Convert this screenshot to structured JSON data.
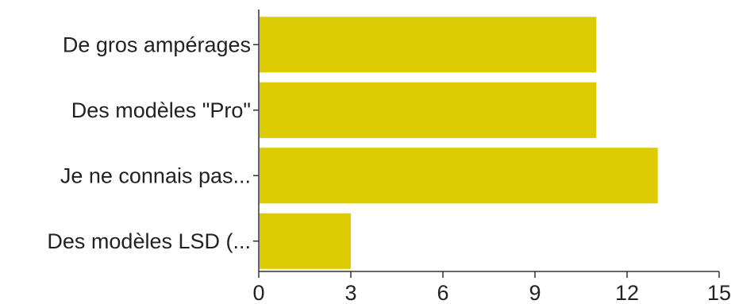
{
  "chart_data": {
    "type": "bar",
    "orientation": "horizontal",
    "categories": [
      "De gros ampérages",
      "Des modèles \"Pro\"",
      "Je ne connais pas...",
      "Des modèles LSD (..."
    ],
    "values": [
      11,
      11,
      13,
      3
    ],
    "xticks": [
      "0",
      "3",
      "6",
      "9",
      "12",
      "15"
    ],
    "xlim": [
      0,
      15
    ],
    "bar_color": "#dccb00",
    "grid": false,
    "legend": "none"
  }
}
